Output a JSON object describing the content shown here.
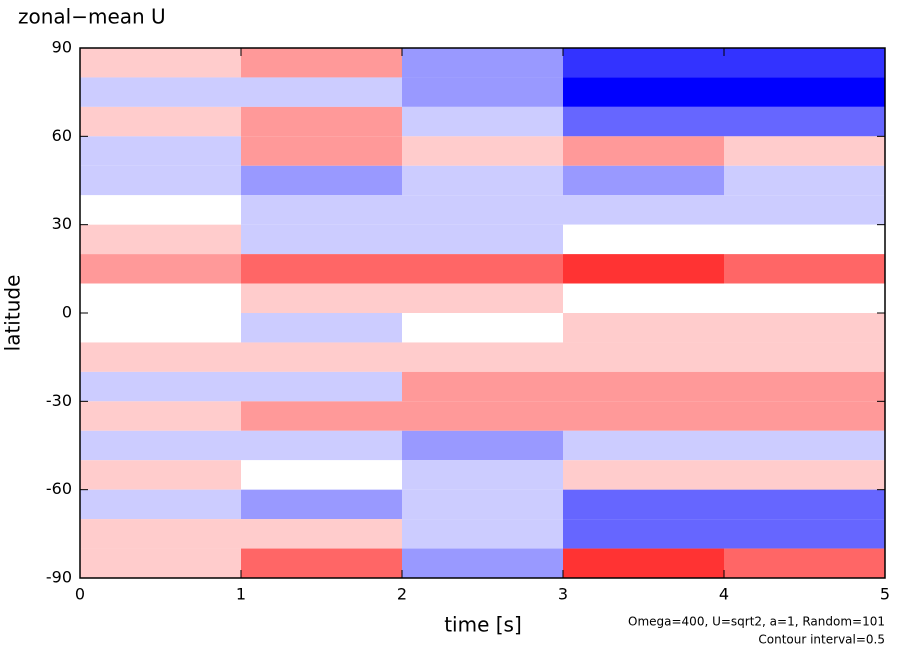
{
  "chart_data": {
    "type": "heatmap",
    "title": "zonal−mean U",
    "x_label": "time [s]",
    "y_label": "latitude",
    "annotations": [
      "Omega=400, U=sqrt2, a=1, Random=101",
      "Contour interval=0.5"
    ],
    "x": [
      0.5,
      1.5,
      2.5,
      3.5,
      4.5
    ],
    "y": [
      85,
      75,
      65,
      55,
      45,
      35,
      25,
      15,
      5,
      -5,
      -15,
      -25,
      -35,
      -45,
      -55,
      -65,
      -75,
      -85
    ],
    "values": [
      [
        1,
        2,
        -2,
        -4,
        -4
      ],
      [
        -1,
        -1,
        -2,
        -5,
        -5
      ],
      [
        1,
        2,
        -1,
        -3,
        -3
      ],
      [
        -1,
        2,
        1,
        2,
        1
      ],
      [
        -1,
        -2,
        -1,
        -2,
        -1
      ],
      [
        0,
        -1,
        -1,
        -1,
        -1
      ],
      [
        1,
        -1,
        -1,
        0,
        0
      ],
      [
        2,
        3,
        3,
        4,
        3
      ],
      [
        0,
        1,
        1,
        0,
        0
      ],
      [
        0,
        -1,
        0,
        1,
        1
      ],
      [
        1,
        1,
        1,
        1,
        1
      ],
      [
        -1,
        -1,
        2,
        2,
        2
      ],
      [
        1,
        2,
        2,
        2,
        2
      ],
      [
        -1,
        -1,
        -2,
        -1,
        -1
      ],
      [
        1,
        0,
        -1,
        1,
        1
      ],
      [
        -1,
        -2,
        -1,
        -3,
        -3
      ],
      [
        1,
        1,
        -1,
        -3,
        -3
      ],
      [
        1,
        3,
        -2,
        4,
        3
      ]
    ],
    "zlim": [
      -5,
      5
    ],
    "colors": {
      "negative": "#0000ff",
      "zero": "#ffffff",
      "positive": "#ff0000"
    },
    "xlim": [
      0,
      5
    ],
    "xticks": [
      0,
      1,
      2,
      3,
      4,
      5
    ],
    "ylim": [
      -90,
      90
    ],
    "yticks": [
      -90,
      -60,
      -30,
      0,
      30,
      60,
      90
    ]
  }
}
